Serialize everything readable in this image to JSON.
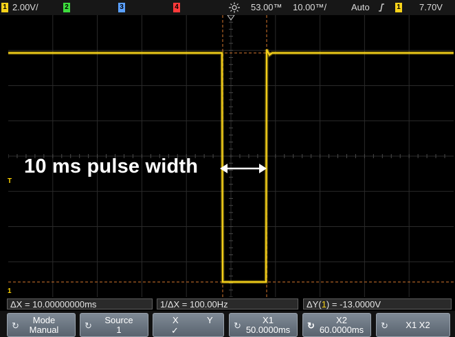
{
  "top_bar": {
    "ch1_number": "1",
    "ch1_scale": "2.00V/",
    "ch2_number": "2",
    "ch3_number": "3",
    "ch4_number": "4",
    "acquire_icon": "sun-icon",
    "time_delay": "53.00™",
    "time_scale": "10.00™/",
    "trigger_mode": "Auto",
    "trigger_slope_icon": "rising-edge-icon",
    "trigger_source": "1",
    "trigger_level": "7.70V"
  },
  "screen": {
    "annotation": "10 ms pulse width",
    "trigger_level_marker": "T",
    "ground_marker": "1"
  },
  "measurements": {
    "delta_x": "ΔX = 10.00000000ms",
    "inverse_delta_x": "1/ΔX = 100.00Hz",
    "delta_y_prefix": "ΔY(",
    "delta_y_channel": "1",
    "delta_y_suffix": ") = -13.0000V"
  },
  "softkeys": [
    {
      "line1": "Mode",
      "line2": "Manual",
      "icon": "rotate-icon"
    },
    {
      "line1": "Source",
      "line2": "1",
      "icon": "rotate-icon"
    },
    {
      "line1_left": "X",
      "line1_right": "Y",
      "line2": "✓"
    },
    {
      "line1": "X1",
      "line2": "50.0000ms",
      "icon": "rotate-icon"
    },
    {
      "line1": "X2",
      "line2": "60.0000ms",
      "icon": "rotate-selected-icon"
    },
    {
      "line1": "X1 X2",
      "icon": "rotate-icon"
    }
  ],
  "colors": {
    "channel1": "#f7d21a",
    "channel2": "#3ddc3d",
    "channel3": "#5aa0ff",
    "channel4": "#ff3a3a",
    "cursor": "#d8782e",
    "background": "#000000"
  }
}
